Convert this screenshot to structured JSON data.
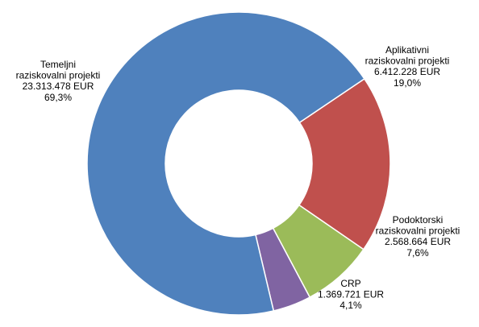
{
  "chart_data": {
    "type": "pie",
    "variant": "donut",
    "title": "",
    "legend": "none",
    "start_angle_deg": 56,
    "slices": [
      {
        "lines": [
          "Aplikativni",
          "raziskovalni projekti",
          "6.412.228 EUR",
          "19,0%"
        ],
        "value": 6412228,
        "percent": 19.0,
        "color": "#C0504D"
      },
      {
        "lines": [
          "Podoktorski",
          "raziskovalni projekti",
          "2.568.664 EUR",
          "7,6%"
        ],
        "value": 2568664,
        "percent": 7.6,
        "color": "#9BBB59"
      },
      {
        "lines": [
          "CRP",
          "1.369.721 EUR",
          "4,1%"
        ],
        "value": 1369721,
        "percent": 4.1,
        "color": "#8064A2"
      },
      {
        "lines": [
          "Temeljni",
          "raziskovalni projekti",
          "23.313.478 EUR",
          "69,3%"
        ],
        "value": 23313478,
        "percent": 69.3,
        "color": "#4F81BD"
      }
    ]
  }
}
